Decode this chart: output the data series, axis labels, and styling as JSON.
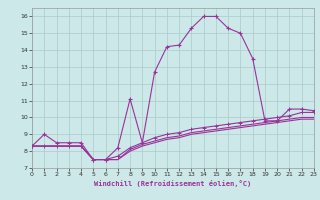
{
  "xlabel": "Windchill (Refroidissement éolien,°C)",
  "background_color": "#cce8e8",
  "line_color": "#993399",
  "grid_color": "#aacccc",
  "xlim": [
    0,
    23
  ],
  "ylim": [
    7,
    16.5
  ],
  "xticks": [
    0,
    1,
    2,
    3,
    4,
    5,
    6,
    7,
    8,
    9,
    10,
    11,
    12,
    13,
    14,
    15,
    16,
    17,
    18,
    19,
    20,
    21,
    22,
    23
  ],
  "yticks": [
    7,
    8,
    9,
    10,
    11,
    12,
    13,
    14,
    15,
    16
  ],
  "line1_x": [
    0,
    1,
    2,
    3,
    4,
    5,
    6,
    7,
    8,
    9,
    10,
    11,
    12,
    13,
    14,
    15,
    16,
    17,
    18,
    19,
    20,
    21,
    22,
    23
  ],
  "line1_y": [
    8.3,
    9.0,
    8.5,
    8.5,
    8.5,
    7.5,
    7.5,
    8.2,
    11.1,
    8.5,
    12.7,
    14.2,
    14.3,
    15.3,
    16.0,
    16.0,
    15.3,
    15.0,
    13.5,
    9.8,
    9.8,
    10.5,
    10.5,
    10.4
  ],
  "line2_x": [
    0,
    1,
    2,
    3,
    4,
    5,
    6,
    7,
    8,
    9,
    10,
    11,
    12,
    13,
    14,
    15,
    16,
    17,
    18,
    19,
    20,
    21,
    22,
    23
  ],
  "line2_y": [
    8.3,
    8.3,
    8.3,
    8.3,
    8.3,
    7.5,
    7.5,
    7.7,
    8.2,
    8.5,
    8.8,
    9.0,
    9.1,
    9.3,
    9.4,
    9.5,
    9.6,
    9.7,
    9.8,
    9.9,
    10.0,
    10.1,
    10.3,
    10.3
  ],
  "line3_x": [
    0,
    1,
    2,
    3,
    4,
    5,
    6,
    7,
    8,
    9,
    10,
    11,
    12,
    13,
    14,
    15,
    16,
    17,
    18,
    19,
    20,
    21,
    22,
    23
  ],
  "line3_y": [
    8.3,
    8.3,
    8.3,
    8.3,
    8.3,
    7.5,
    7.5,
    7.5,
    8.1,
    8.4,
    8.6,
    8.8,
    8.9,
    9.1,
    9.2,
    9.3,
    9.4,
    9.5,
    9.6,
    9.7,
    9.8,
    9.9,
    10.0,
    10.0
  ],
  "line4_x": [
    0,
    1,
    2,
    3,
    4,
    5,
    6,
    7,
    8,
    9,
    10,
    11,
    12,
    13,
    14,
    15,
    16,
    17,
    18,
    19,
    20,
    21,
    22,
    23
  ],
  "line4_y": [
    8.3,
    8.3,
    8.3,
    8.3,
    8.3,
    7.5,
    7.5,
    7.5,
    8.0,
    8.3,
    8.5,
    8.7,
    8.8,
    9.0,
    9.1,
    9.2,
    9.3,
    9.4,
    9.5,
    9.6,
    9.7,
    9.8,
    9.9,
    9.9
  ]
}
